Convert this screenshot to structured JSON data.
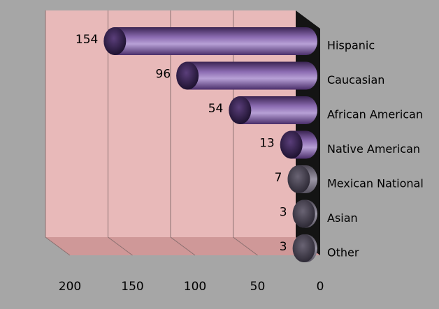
{
  "chart_data": {
    "type": "bar",
    "orientation": "horizontal",
    "x_reversed": true,
    "categories": [
      "Hispanic",
      "Caucasian",
      "African American",
      "Native American",
      "Mexican National",
      "Asian",
      "Other"
    ],
    "values": [
      154,
      96,
      54,
      13,
      7,
      3,
      3
    ],
    "x_ticks": [
      "200",
      "150",
      "100",
      "50",
      "0"
    ],
    "xlim": [
      0,
      200
    ],
    "grid": true,
    "colors": {
      "background": "#a6a6a6",
      "wall": "#e8b9b9",
      "floor": "#cf9898",
      "bar_dark": "#3a2452",
      "bar_mid": "#7a5a9e",
      "bar_light": "#b7a0d6",
      "small_bar_dark": "#4a4552",
      "small_bar_light": "#9c97a6"
    }
  }
}
